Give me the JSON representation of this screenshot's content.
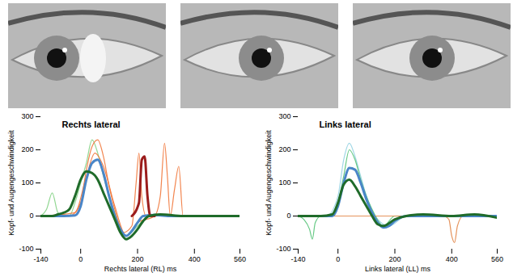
{
  "chart_data": [
    {
      "type": "line",
      "title": "Rechts lateral",
      "xlabel": "Rechts lateral (RL) ms",
      "ylabel": "Kopf- und Augengeschwindigkeit",
      "xlim": [
        -140,
        560
      ],
      "xticks": [
        -140,
        0,
        200,
        400,
        560
      ],
      "ylim": [
        -100,
        300
      ],
      "yticks": [
        -100,
        0,
        100,
        200,
        300
      ],
      "series": [
        {
          "color": "#7fd080",
          "line_style": "thin",
          "x": [
            -140,
            -120,
            -100,
            -80,
            -60,
            -40,
            -20,
            0,
            20,
            40,
            60,
            80,
            120,
            160,
            200,
            240,
            300,
            400,
            560
          ],
          "values": [
            0,
            20,
            70,
            10,
            0,
            0,
            40,
            100,
            160,
            230,
            190,
            120,
            10,
            -60,
            -30,
            0,
            0,
            0,
            0
          ]
        },
        {
          "color": "#f07030",
          "line_style": "thin",
          "x": [
            -140,
            -40,
            0,
            20,
            40,
            60,
            80,
            100,
            120,
            150,
            180,
            195,
            205,
            215,
            230,
            260,
            560
          ],
          "values": [
            0,
            0,
            40,
            140,
            210,
            230,
            180,
            90,
            20,
            -50,
            -30,
            100,
            190,
            60,
            0,
            0,
            0
          ]
        },
        {
          "color": "#f07030",
          "line_style": "thin",
          "x": [
            -140,
            -20,
            20,
            50,
            80,
            120,
            160,
            200,
            260,
            280,
            295,
            305,
            315,
            330,
            345,
            360,
            560
          ],
          "values": [
            0,
            10,
            120,
            190,
            150,
            30,
            -60,
            -20,
            0,
            60,
            220,
            120,
            0,
            80,
            150,
            0,
            0
          ]
        },
        {
          "color": "#4a86c8",
          "line_style": "thick",
          "x": [
            -140,
            -100,
            -60,
            -20,
            0,
            20,
            40,
            60,
            80,
            100,
            120,
            140,
            160,
            180,
            200,
            220,
            260,
            320,
            400,
            560
          ],
          "values": [
            0,
            0,
            0,
            2,
            30,
            110,
            160,
            170,
            130,
            60,
            0,
            -40,
            -60,
            -45,
            -20,
            0,
            3,
            0,
            0,
            0
          ]
        },
        {
          "color": "#9b1c1c",
          "line_style": "thick",
          "x": [
            180,
            205,
            215,
            225,
            235,
            245,
            260
          ],
          "values": [
            0,
            40,
            170,
            180,
            60,
            0,
            0
          ]
        },
        {
          "color": "#1f6b2a",
          "line_style": "thick",
          "x": [
            -140,
            -100,
            -80,
            -60,
            -40,
            -20,
            0,
            20,
            40,
            60,
            80,
            100,
            120,
            140,
            160,
            180,
            200,
            220,
            240,
            280,
            360,
            460,
            560
          ],
          "values": [
            0,
            0,
            5,
            10,
            20,
            60,
            110,
            135,
            130,
            110,
            70,
            30,
            -10,
            -50,
            -70,
            -60,
            -40,
            -15,
            0,
            5,
            0,
            0,
            0
          ]
        }
      ]
    },
    {
      "type": "line",
      "title": "Links lateral",
      "xlabel": "Links lateral (LL) ms",
      "ylabel": "Kopf- und Augengeschwindigkeit",
      "xlim": [
        -140,
        560
      ],
      "xticks": [
        -140,
        0,
        200,
        400,
        560
      ],
      "ylim": [
        -100,
        300
      ],
      "yticks": [
        -100,
        0,
        100,
        200,
        300
      ],
      "series": [
        {
          "color": "#8fd0e0",
          "line_style": "thin",
          "x": [
            -140,
            -40,
            0,
            20,
            40,
            60,
            80,
            100,
            140,
            180,
            240,
            560
          ],
          "values": [
            0,
            0,
            60,
            170,
            220,
            180,
            120,
            60,
            -10,
            -30,
            0,
            0
          ]
        },
        {
          "color": "#4cc070",
          "line_style": "thin",
          "x": [
            -140,
            -120,
            -100,
            -90,
            -80,
            -60,
            -20,
            0,
            20,
            40,
            60,
            80,
            120,
            160,
            200,
            300,
            560
          ],
          "values": [
            0,
            -10,
            -40,
            -70,
            -20,
            0,
            0,
            40,
            120,
            200,
            170,
            110,
            20,
            -30,
            0,
            0,
            0
          ]
        },
        {
          "color": "#e08040",
          "line_style": "thin",
          "x": [
            -140,
            200,
            370,
            390,
            400,
            410,
            420,
            440,
            460,
            560
          ],
          "values": [
            0,
            0,
            0,
            -10,
            -60,
            -80,
            -30,
            0,
            0,
            0
          ]
        },
        {
          "color": "#4a86c8",
          "line_style": "thick",
          "x": [
            -140,
            -60,
            -20,
            0,
            20,
            40,
            60,
            80,
            100,
            120,
            140,
            160,
            180,
            200,
            240,
            300,
            560
          ],
          "values": [
            0,
            0,
            0,
            30,
            100,
            145,
            140,
            100,
            50,
            10,
            -20,
            -35,
            -30,
            -15,
            0,
            0,
            0
          ]
        },
        {
          "color": "#1f6b2a",
          "line_style": "thick",
          "x": [
            -140,
            -60,
            -20,
            0,
            20,
            40,
            60,
            80,
            100,
            120,
            140,
            160,
            200,
            240,
            300,
            400,
            480,
            560
          ],
          "values": [
            0,
            0,
            5,
            40,
            95,
            110,
            90,
            60,
            30,
            0,
            -25,
            -30,
            -10,
            0,
            5,
            0,
            5,
            -5
          ]
        }
      ]
    }
  ]
}
